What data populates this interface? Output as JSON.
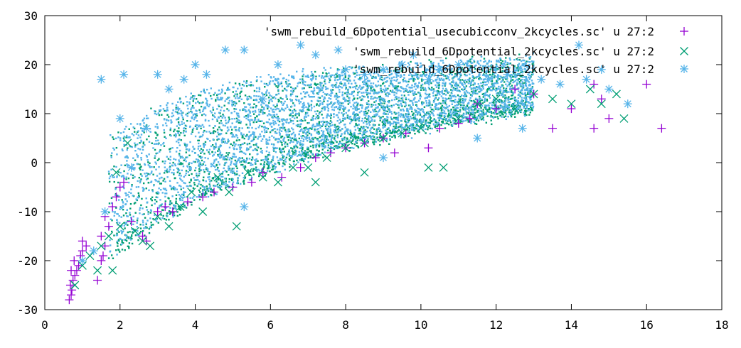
{
  "chart_data": {
    "type": "scatter",
    "title": "",
    "xlabel": "",
    "ylabel": "",
    "xlim": [
      0,
      18
    ],
    "ylim": [
      -30,
      30
    ],
    "xticks": [
      0,
      2,
      4,
      6,
      8,
      10,
      12,
      14,
      16,
      18
    ],
    "yticks": [
      -30,
      -20,
      -10,
      0,
      10,
      20,
      30
    ],
    "grid": false,
    "legend_position": "top-right",
    "series": [
      {
        "name": "'swm_rebuild_6Dpotential_usecubicconv_2kcycles.sc' u 27:2",
        "marker": "plus",
        "color": "#9400d3",
        "points": [
          [
            0.65,
            -28
          ],
          [
            0.7,
            -27
          ],
          [
            0.72,
            -26
          ],
          [
            0.68,
            -25
          ],
          [
            0.75,
            -24
          ],
          [
            0.8,
            -23
          ],
          [
            0.7,
            -22
          ],
          [
            0.85,
            -22
          ],
          [
            0.9,
            -21
          ],
          [
            0.78,
            -20
          ],
          [
            0.95,
            -19
          ],
          [
            1.0,
            -18
          ],
          [
            1.1,
            -17
          ],
          [
            1.0,
            -16
          ],
          [
            1.4,
            -24
          ],
          [
            1.5,
            -20
          ],
          [
            1.55,
            -19
          ],
          [
            1.6,
            -17
          ],
          [
            1.5,
            -15
          ],
          [
            1.7,
            -13
          ],
          [
            1.6,
            -11
          ],
          [
            1.8,
            -9
          ],
          [
            1.9,
            -7
          ],
          [
            2.0,
            -5
          ],
          [
            2.1,
            -4
          ],
          [
            2.3,
            -12
          ],
          [
            2.6,
            -15
          ],
          [
            2.7,
            -16
          ],
          [
            3.0,
            -10
          ],
          [
            3.2,
            -9
          ],
          [
            3.4,
            -10
          ],
          [
            3.8,
            -8
          ],
          [
            4.2,
            -7
          ],
          [
            4.5,
            -6
          ],
          [
            5.0,
            -5
          ],
          [
            5.5,
            -4
          ],
          [
            5.8,
            -2
          ],
          [
            6.3,
            -3
          ],
          [
            6.8,
            -1
          ],
          [
            7.2,
            1
          ],
          [
            7.6,
            2
          ],
          [
            8.0,
            3
          ],
          [
            8.5,
            4
          ],
          [
            9.0,
            5
          ],
          [
            9.3,
            2
          ],
          [
            9.6,
            6
          ],
          [
            10.2,
            3
          ],
          [
            10.5,
            7
          ],
          [
            11.0,
            8
          ],
          [
            11.3,
            9
          ],
          [
            11.5,
            12
          ],
          [
            12.0,
            11
          ],
          [
            12.5,
            15
          ],
          [
            13.0,
            14
          ],
          [
            13.5,
            7
          ],
          [
            14.0,
            11
          ],
          [
            14.6,
            7
          ],
          [
            14.6,
            16
          ],
          [
            14.8,
            13
          ],
          [
            15.0,
            9
          ],
          [
            16.0,
            16
          ],
          [
            16.4,
            7
          ]
        ]
      },
      {
        "name": "'swm_rebuild_6Dpotential_2kcycles.sc' u 27:2",
        "marker": "cross",
        "color": "#009e73",
        "points": [
          [
            0.8,
            -25
          ],
          [
            1.0,
            -21
          ],
          [
            1.2,
            -19
          ],
          [
            1.4,
            -22
          ],
          [
            1.5,
            -17
          ],
          [
            1.7,
            -15
          ],
          [
            1.8,
            -22
          ],
          [
            1.9,
            -2
          ],
          [
            2.0,
            -13
          ],
          [
            2.2,
            4
          ],
          [
            2.4,
            -14
          ],
          [
            2.6,
            -16
          ],
          [
            2.8,
            -17
          ],
          [
            3.0,
            -11
          ],
          [
            3.3,
            -13
          ],
          [
            3.6,
            -9
          ],
          [
            3.9,
            -6
          ],
          [
            4.2,
            -10
          ],
          [
            4.6,
            -3
          ],
          [
            4.9,
            -6
          ],
          [
            5.1,
            -13
          ],
          [
            5.4,
            -2
          ],
          [
            5.8,
            -3
          ],
          [
            6.2,
            -4
          ],
          [
            6.6,
            -1
          ],
          [
            7.0,
            -1
          ],
          [
            7.2,
            -4
          ],
          [
            7.5,
            1
          ],
          [
            8.0,
            3
          ],
          [
            8.5,
            4
          ],
          [
            8.5,
            -2
          ],
          [
            9.0,
            5
          ],
          [
            9.5,
            6
          ],
          [
            10.0,
            7
          ],
          [
            10.2,
            -1
          ],
          [
            10.6,
            -1
          ],
          [
            11.0,
            9
          ],
          [
            11.5,
            12
          ],
          [
            12.0,
            13
          ],
          [
            12.5,
            11
          ],
          [
            13.0,
            14
          ],
          [
            13.5,
            13
          ],
          [
            14.0,
            12
          ],
          [
            14.5,
            15
          ],
          [
            14.8,
            12
          ],
          [
            15.2,
            14
          ],
          [
            15.4,
            9
          ]
        ]
      },
      {
        "name": "'swm_rebuild_6Dpotential_2kcycles.sc' u 27:2",
        "marker": "star",
        "color": "#56b4e9",
        "points": [
          [
            1.0,
            -20
          ],
          [
            1.3,
            -18
          ],
          [
            1.6,
            -10
          ],
          [
            1.5,
            17
          ],
          [
            2.0,
            9
          ],
          [
            2.1,
            18
          ],
          [
            2.3,
            -1
          ],
          [
            2.7,
            7
          ],
          [
            3.0,
            18
          ],
          [
            3.3,
            15
          ],
          [
            3.7,
            17
          ],
          [
            4.0,
            20
          ],
          [
            4.3,
            18
          ],
          [
            4.8,
            23
          ],
          [
            5.3,
            23
          ],
          [
            5.3,
            -9
          ],
          [
            5.8,
            13
          ],
          [
            6.2,
            20
          ],
          [
            6.8,
            24
          ],
          [
            7.2,
            22
          ],
          [
            7.8,
            23
          ],
          [
            8.0,
            19
          ],
          [
            8.5,
            18
          ],
          [
            9.0,
            19
          ],
          [
            9.0,
            1
          ],
          [
            9.5,
            20
          ],
          [
            9.8,
            22
          ],
          [
            10.2,
            17
          ],
          [
            10.5,
            19
          ],
          [
            11.0,
            20
          ],
          [
            11.5,
            5
          ],
          [
            11.8,
            17
          ],
          [
            12.3,
            18
          ],
          [
            12.7,
            7
          ],
          [
            13.2,
            17
          ],
          [
            13.7,
            16
          ],
          [
            14.2,
            24
          ],
          [
            14.4,
            17
          ],
          [
            14.8,
            19
          ],
          [
            15.0,
            15
          ],
          [
            15.5,
            12
          ]
        ]
      }
    ]
  }
}
